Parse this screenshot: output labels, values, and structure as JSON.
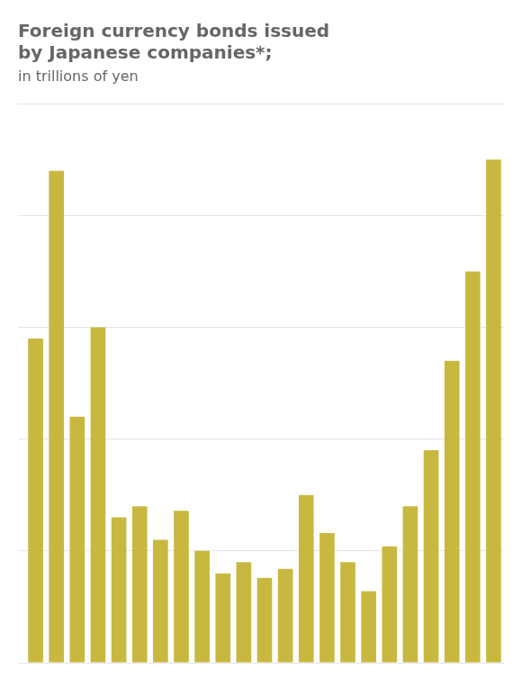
{
  "chart_data": {
    "type": "bar",
    "title": [
      "Foreign currency bonds issued",
      "by Japanese companies*;"
    ],
    "subtitle": "in trillions of yen",
    "categories": [
      null,
      null,
      null,
      null,
      null,
      null,
      null,
      null,
      null,
      null,
      null,
      null,
      null,
      null,
      null,
      null,
      null,
      null,
      null,
      null,
      null,
      null,
      null
    ],
    "values": [
      14.5,
      22.0,
      11.0,
      15.0,
      6.5,
      7.0,
      5.5,
      6.8,
      5.0,
      4.0,
      4.5,
      3.8,
      4.2,
      7.5,
      5.8,
      4.5,
      3.2,
      5.2,
      7.0,
      9.5,
      13.5,
      17.5,
      22.5
    ],
    "color": "#c8b840",
    "ylim": [
      0,
      25
    ],
    "yticks": [
      0,
      5,
      10,
      15,
      20,
      25
    ],
    "grid": true,
    "tick_labels": false
  }
}
